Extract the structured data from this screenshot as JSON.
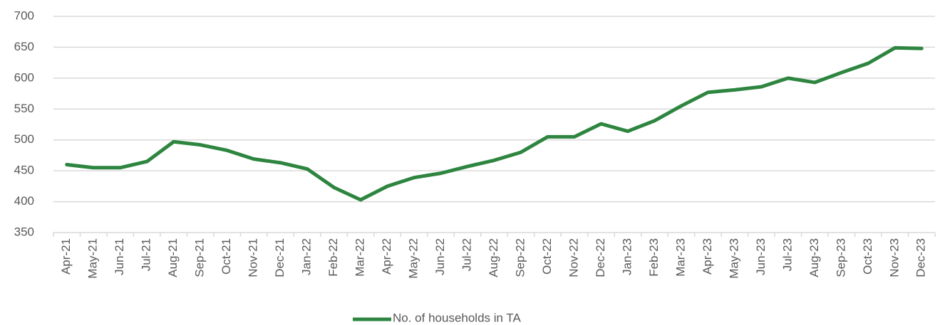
{
  "chart_data": {
    "type": "line",
    "categories": [
      "Apr-21",
      "May-21",
      "Jun-21",
      "Jul-21",
      "Aug-21",
      "Sep-21",
      "Oct-21",
      "Nov-21",
      "Dec-21",
      "Jan-22",
      "Feb-22",
      "Mar-22",
      "Apr-22",
      "May-22",
      "Jun-22",
      "Jul-22",
      "Aug-22",
      "Sep-22",
      "Oct-22",
      "Nov-22",
      "Dec-22",
      "Jan-23",
      "Feb-23",
      "Mar-23",
      "Apr-23",
      "May-23",
      "Jun-23",
      "Jul-23",
      "Aug-23",
      "Sep-23",
      "Oct-23",
      "Nov-23",
      "Dec-23"
    ],
    "series": [
      {
        "name": "No. of households in TA",
        "color": "#2e8540",
        "values": [
          460,
          455,
          455,
          465,
          497,
          492,
          483,
          469,
          463,
          453,
          423,
          403,
          425,
          439,
          446,
          457,
          467,
          480,
          505,
          505,
          526,
          514,
          531,
          555,
          577,
          581,
          586,
          600,
          593,
          609,
          624,
          649,
          648
        ]
      }
    ],
    "ylim": [
      350,
      700
    ],
    "yticks": [
      350,
      400,
      450,
      500,
      550,
      600,
      650,
      700
    ],
    "grid": true,
    "legend": "bottom"
  }
}
